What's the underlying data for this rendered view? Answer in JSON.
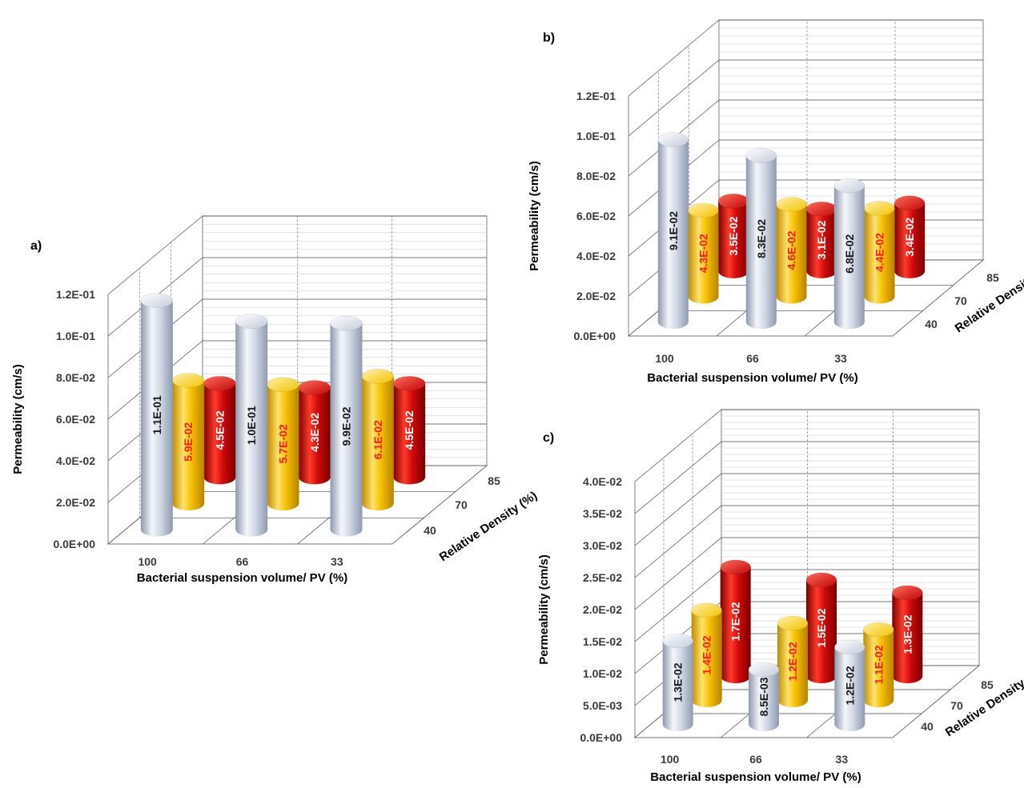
{
  "colors": {
    "series_40": "#c7d0e0",
    "series_70": "#f5c400",
    "series_85": "#c81010",
    "label_40": "#1a1a1a",
    "label_70": "#ff1a1a",
    "label_85": "#ffffff"
  },
  "chart_data": [
    {
      "type": "bar",
      "panel": "a)",
      "categories": [
        "100",
        "66",
        "33"
      ],
      "depth_categories": [
        "40",
        "70",
        "85"
      ],
      "xlabel": "Bacterial suspension volume/ PV (%)",
      "ylabel": "Permeability (cm/s)",
      "zlabel": "Relative Density (%)",
      "yticks": [
        "0.0E+00",
        "2.0E-02",
        "4.0E-02",
        "6.0E-02",
        "8.0E-02",
        "1.0E-01",
        "1.2E-01"
      ],
      "ylim": [
        0,
        0.12
      ],
      "series": [
        {
          "name": "40",
          "values": [
            0.11,
            0.1,
            0.099
          ],
          "labels": [
            "1.1E-01",
            "1.0E-01",
            "9.9E-02"
          ]
        },
        {
          "name": "70",
          "values": [
            0.059,
            0.057,
            0.061
          ],
          "labels": [
            "5.9E-02",
            "5.7E-02",
            "6.1E-02"
          ]
        },
        {
          "name": "85",
          "values": [
            0.045,
            0.043,
            0.045
          ],
          "labels": [
            "4.5E-02",
            "4.3E-02",
            "4.5E-02"
          ]
        }
      ]
    },
    {
      "type": "bar",
      "panel": "b)",
      "categories": [
        "100",
        "66",
        "33"
      ],
      "depth_categories": [
        "40",
        "70",
        "85"
      ],
      "xlabel": "Bacterial suspension volume/ PV (%)",
      "ylabel": "Permeability (cm/s)",
      "zlabel": "Relative Density (%)",
      "yticks": [
        "0.0E+00",
        "2.0E-02",
        "4.0E-02",
        "6.0E-02",
        "8.0E-02",
        "1.0E-01",
        "1.2E-01"
      ],
      "ylim": [
        0,
        0.12
      ],
      "series": [
        {
          "name": "40",
          "values": [
            0.091,
            0.083,
            0.068
          ],
          "labels": [
            "9.1E-02",
            "8.3E-02",
            "6.8E-02"
          ]
        },
        {
          "name": "70",
          "values": [
            0.043,
            0.046,
            0.044
          ],
          "labels": [
            "4.3E-02",
            "4.6E-02",
            "4.4E-02"
          ]
        },
        {
          "name": "85",
          "values": [
            0.035,
            0.031,
            0.034
          ],
          "labels": [
            "3.5E-02",
            "3.1E-02",
            "3.4E-02"
          ]
        }
      ]
    },
    {
      "type": "bar",
      "panel": "c)",
      "categories": [
        "100",
        "66",
        "33"
      ],
      "depth_categories": [
        "40",
        "70",
        "85"
      ],
      "xlabel": "Bacterial suspension volume/ PV (%)",
      "ylabel": "Permeability (cm/s)",
      "zlabel": "Relative Density (%)",
      "yticks": [
        "0.0E+00",
        "5.0E-03",
        "1.0E-02",
        "1.5E-02",
        "2.0E-02",
        "2.5E-02",
        "3.0E-02",
        "3.5E-02",
        "4.0E-02"
      ],
      "ylim": [
        0,
        0.04
      ],
      "series": [
        {
          "name": "40",
          "values": [
            0.013,
            0.0085,
            0.012
          ],
          "labels": [
            "1.3E-02",
            "8.5E-03",
            "1.2E-02"
          ]
        },
        {
          "name": "70",
          "values": [
            0.014,
            0.012,
            0.011
          ],
          "labels": [
            "1.4E-02",
            "1.2E-02",
            "1.1E-02"
          ]
        },
        {
          "name": "85",
          "values": [
            0.017,
            0.015,
            0.013
          ],
          "labels": [
            "1.7E-02",
            "1.5E-02",
            "1.3E-02"
          ]
        }
      ]
    }
  ]
}
